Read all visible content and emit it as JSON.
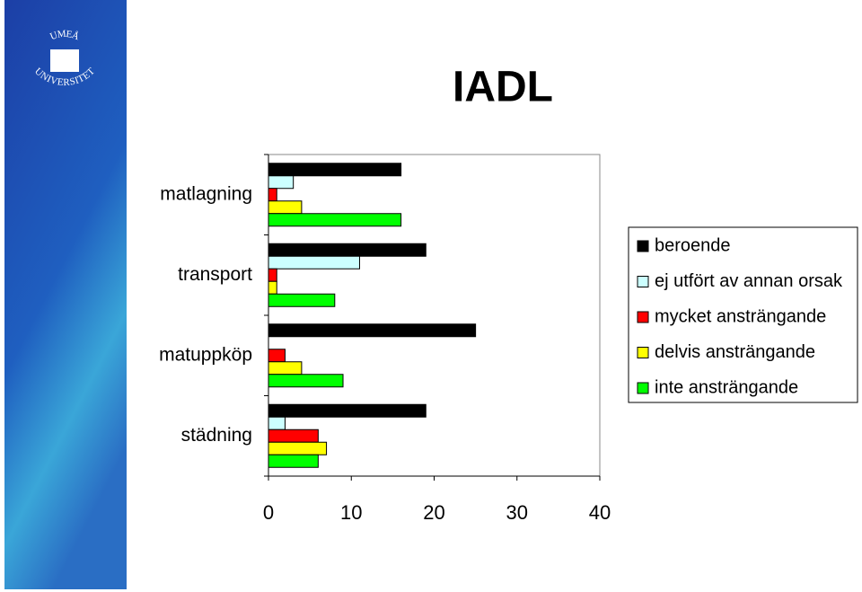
{
  "logo": {
    "top": "UMEÅ",
    "bottom": "UNIVERSITET"
  },
  "chart_data": {
    "type": "bar",
    "orientation": "horizontal",
    "title": "IADL",
    "categories": [
      "matlagning",
      "transport",
      "matuppköp",
      "städning"
    ],
    "series": [
      {
        "name": "beroende",
        "color": "#000000",
        "values": [
          16,
          19,
          25,
          19
        ]
      },
      {
        "name": "ej utfört av annan orsak",
        "color": "#ccffff",
        "values": [
          3,
          11,
          0,
          2
        ]
      },
      {
        "name": "mycket ansträngande",
        "color": "#ff0000",
        "values": [
          1,
          1,
          2,
          6
        ]
      },
      {
        "name": "delvis ansträngande",
        "color": "#ffff00",
        "values": [
          4,
          1,
          4,
          7
        ]
      },
      {
        "name": "inte ansträngande",
        "color": "#00ff00",
        "values": [
          16,
          8,
          9,
          6
        ]
      }
    ],
    "xlim": [
      0,
      40
    ],
    "xticks": [
      0,
      10,
      20,
      30,
      40
    ],
    "grid": false,
    "legend": "right"
  }
}
